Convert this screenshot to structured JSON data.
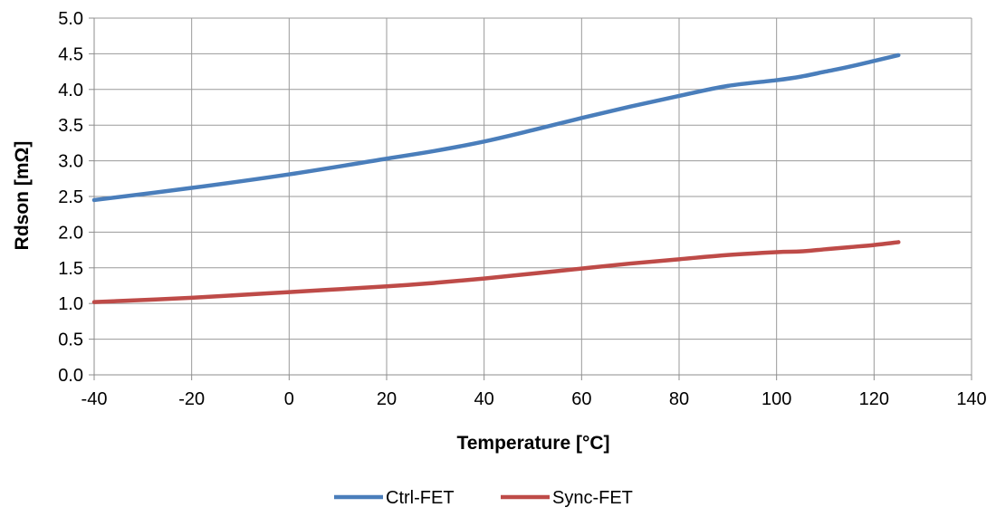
{
  "chart_data": {
    "type": "line",
    "xlabel": "Temperature [°C]",
    "ylabel": "Rdson [mΩ]",
    "xlim": [
      -40,
      140
    ],
    "ylim": [
      0,
      5
    ],
    "x_ticks": [
      -40,
      -20,
      0,
      20,
      40,
      60,
      80,
      100,
      120,
      140
    ],
    "y_ticks": [
      "0.0",
      "0.5",
      "1.0",
      "1.5",
      "2.0",
      "2.5",
      "3.0",
      "3.5",
      "4.0",
      "4.5",
      "5.0"
    ],
    "grid": true,
    "legend_position": "bottom",
    "series": [
      {
        "name": "Ctrl-FET",
        "color": "#4a7ebb",
        "x": [
          -40,
          -20,
          0,
          20,
          30,
          40,
          50,
          60,
          70,
          80,
          90,
          100,
          105,
          110,
          115,
          120,
          125
        ],
        "y": [
          2.45,
          2.62,
          2.81,
          3.03,
          3.14,
          3.27,
          3.43,
          3.6,
          3.76,
          3.91,
          4.05,
          4.13,
          4.18,
          4.25,
          4.32,
          4.4,
          4.48
        ]
      },
      {
        "name": "Sync-FET",
        "color": "#be4b48",
        "x": [
          -40,
          -20,
          0,
          20,
          30,
          40,
          50,
          60,
          70,
          80,
          90,
          100,
          105,
          110,
          115,
          120,
          125
        ],
        "y": [
          1.02,
          1.08,
          1.16,
          1.24,
          1.29,
          1.35,
          1.42,
          1.49,
          1.56,
          1.62,
          1.68,
          1.72,
          1.73,
          1.76,
          1.79,
          1.82,
          1.86
        ]
      }
    ]
  }
}
